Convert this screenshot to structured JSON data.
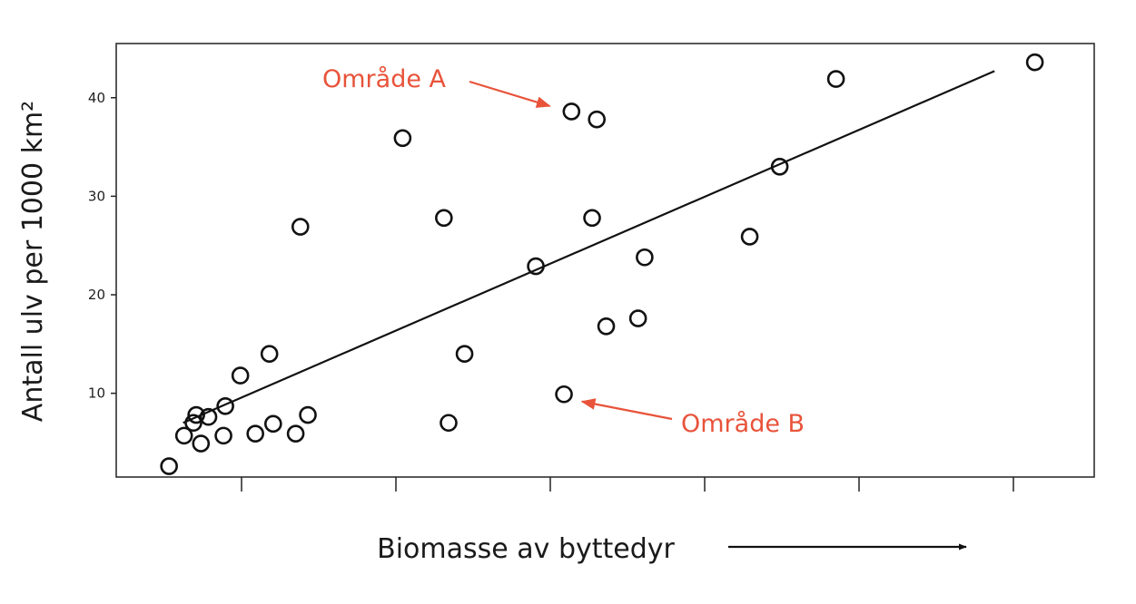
{
  "chart_data": {
    "type": "scatter",
    "xlabel": "Biomasse av byttedyr",
    "ylabel": "Antall ulv per 1000 km²",
    "ylim": [
      1.5,
      45.5
    ],
    "xlim": [
      0,
      100
    ],
    "yticks": [
      10,
      20,
      30,
      40
    ],
    "x_ticks_labeled": false,
    "x_tick_count": 6,
    "grid": false,
    "legend": "none",
    "x_axis_arrow": true,
    "points": [
      {
        "x": 3.5,
        "y": 2.6
      },
      {
        "x": 5.1,
        "y": 5.7
      },
      {
        "x": 6.1,
        "y": 7.0
      },
      {
        "x": 6.4,
        "y": 7.8
      },
      {
        "x": 6.9,
        "y": 4.9
      },
      {
        "x": 7.7,
        "y": 7.6
      },
      {
        "x": 9.3,
        "y": 5.7
      },
      {
        "x": 9.5,
        "y": 8.7
      },
      {
        "x": 11.1,
        "y": 11.8
      },
      {
        "x": 12.7,
        "y": 5.9
      },
      {
        "x": 14.2,
        "y": 14.0
      },
      {
        "x": 14.6,
        "y": 6.9
      },
      {
        "x": 17.0,
        "y": 5.9
      },
      {
        "x": 17.5,
        "y": 26.9
      },
      {
        "x": 18.3,
        "y": 7.8
      },
      {
        "x": 28.4,
        "y": 35.9
      },
      {
        "x": 32.8,
        "y": 27.8
      },
      {
        "x": 33.3,
        "y": 7.0
      },
      {
        "x": 35.0,
        "y": 14.0
      },
      {
        "x": 42.6,
        "y": 22.9
      },
      {
        "x": 45.6,
        "y": 9.9
      },
      {
        "x": 46.4,
        "y": 38.6
      },
      {
        "x": 48.6,
        "y": 27.8
      },
      {
        "x": 49.1,
        "y": 37.8
      },
      {
        "x": 50.1,
        "y": 16.8
      },
      {
        "x": 53.5,
        "y": 17.6
      },
      {
        "x": 54.2,
        "y": 23.8
      },
      {
        "x": 65.4,
        "y": 25.9
      },
      {
        "x": 68.6,
        "y": 33.0
      },
      {
        "x": 74.6,
        "y": 41.9
      },
      {
        "x": 95.8,
        "y": 43.6
      }
    ],
    "trendline": {
      "x": [
        5.0,
        91.5
      ],
      "y": [
        7.0,
        42.7
      ]
    },
    "annotations": [
      {
        "label": "Område A",
        "target": {
          "x": 46.4,
          "y": 38.6
        }
      },
      {
        "label": "Område B",
        "target": {
          "x": 45.6,
          "y": 9.9
        }
      }
    ]
  },
  "colors": {
    "annotation": "#e8533a",
    "axis": "#222222",
    "points": "#111111",
    "trendline": "#111111"
  }
}
